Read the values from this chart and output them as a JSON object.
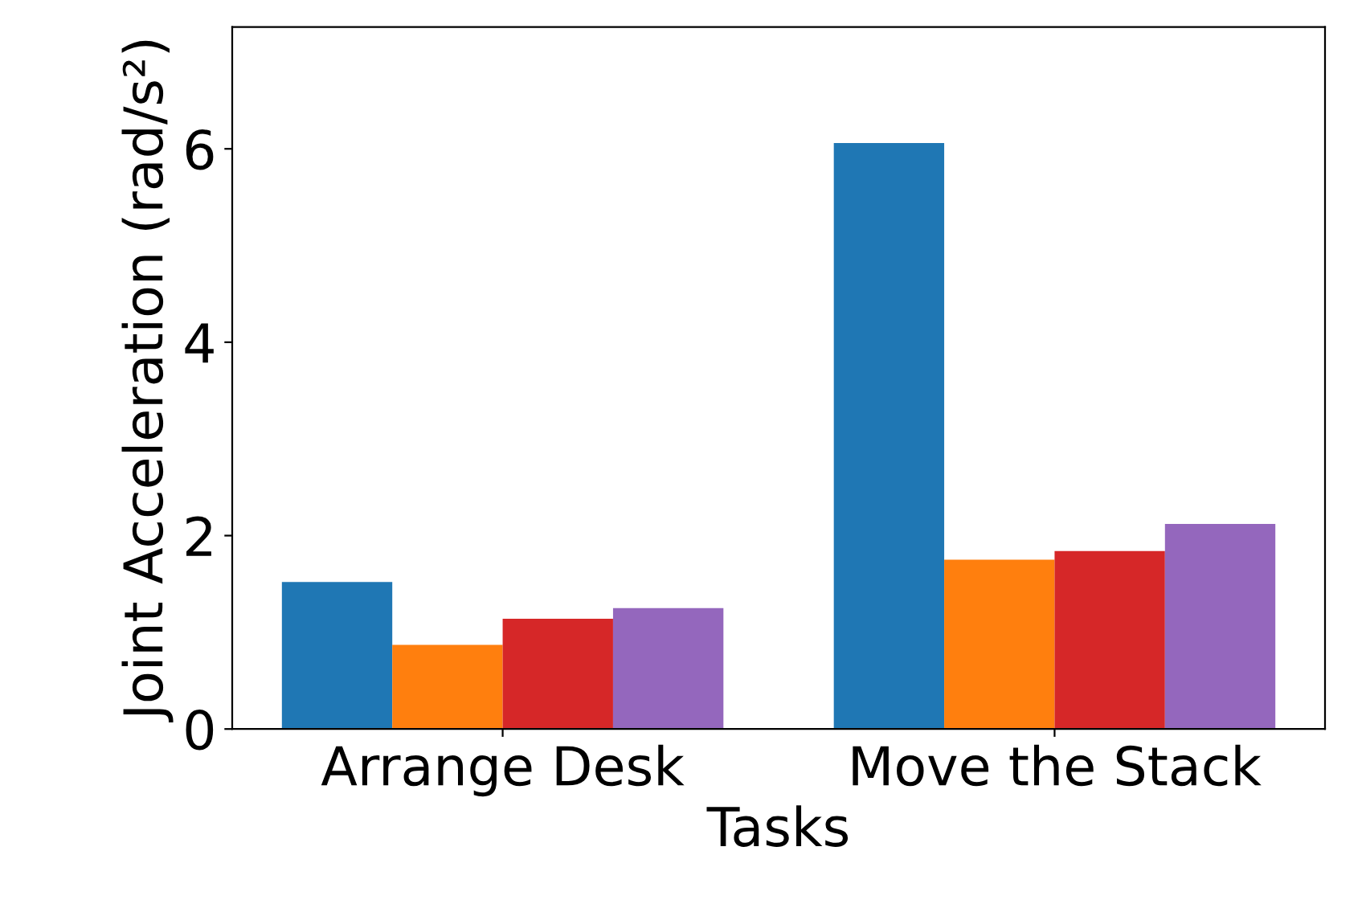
{
  "chart_data": {
    "type": "bar",
    "xlabel": "Tasks",
    "ylabel": "Joint Acceleration (rad/s²)",
    "categories": [
      "Arrange Desk",
      "Move the Stack"
    ],
    "series": [
      {
        "color": "#1f77b4",
        "values": [
          1.52,
          6.06
        ]
      },
      {
        "color": "#ff7f0e",
        "values": [
          0.87,
          1.75
        ]
      },
      {
        "color": "#d62728",
        "values": [
          1.14,
          1.84
        ]
      },
      {
        "color": "#9467bd",
        "values": [
          1.25,
          2.12
        ]
      }
    ],
    "ylim": [
      0,
      7.26
    ],
    "yticks": [
      0,
      2,
      4,
      6
    ],
    "grid": false,
    "legend": false
  }
}
